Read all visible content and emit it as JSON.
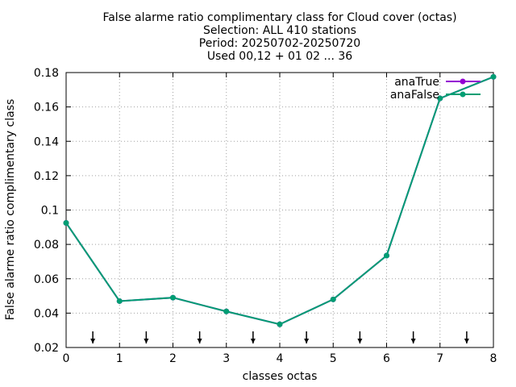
{
  "chart_data": {
    "type": "line",
    "title_lines": [
      "False alarme ratio complimentary class  for Cloud cover (octas)",
      "Selection: ALL    410 stations",
      "Period: 20250702-20250720",
      "Used 00,12 + 01 02 ... 36"
    ],
    "xlabel": "classes octas",
    "ylabel": "False alarme ratio complimentary class",
    "xlim": [
      0,
      8
    ],
    "ylim": [
      0.02,
      0.18
    ],
    "xticks": [
      "0",
      "1",
      "2",
      "3",
      "4",
      "5",
      "6",
      "7",
      "8"
    ],
    "yticks": [
      "0.02",
      "0.04",
      "0.06",
      "0.08",
      "0.1",
      "0.12",
      "0.14",
      "0.16",
      "0.18"
    ],
    "grid": true,
    "legend_position": "top-right",
    "x": [
      0,
      1,
      2,
      3,
      4,
      5,
      6,
      7,
      8
    ],
    "series": [
      {
        "name": "anaTrue",
        "color": "#9400d3",
        "values": [
          0.0925,
          0.047,
          0.049,
          0.041,
          0.0335,
          0.048,
          0.0735,
          0.165,
          0.1775
        ]
      },
      {
        "name": "anaFalse",
        "color": "#009e73",
        "values": [
          0.0925,
          0.047,
          0.049,
          0.041,
          0.0335,
          0.048,
          0.0735,
          0.165,
          0.1775
        ]
      }
    ],
    "arrow_markers_x": [
      0.5,
      1.5,
      2.5,
      3.5,
      4.5,
      5.5,
      6.5,
      7.5
    ]
  }
}
